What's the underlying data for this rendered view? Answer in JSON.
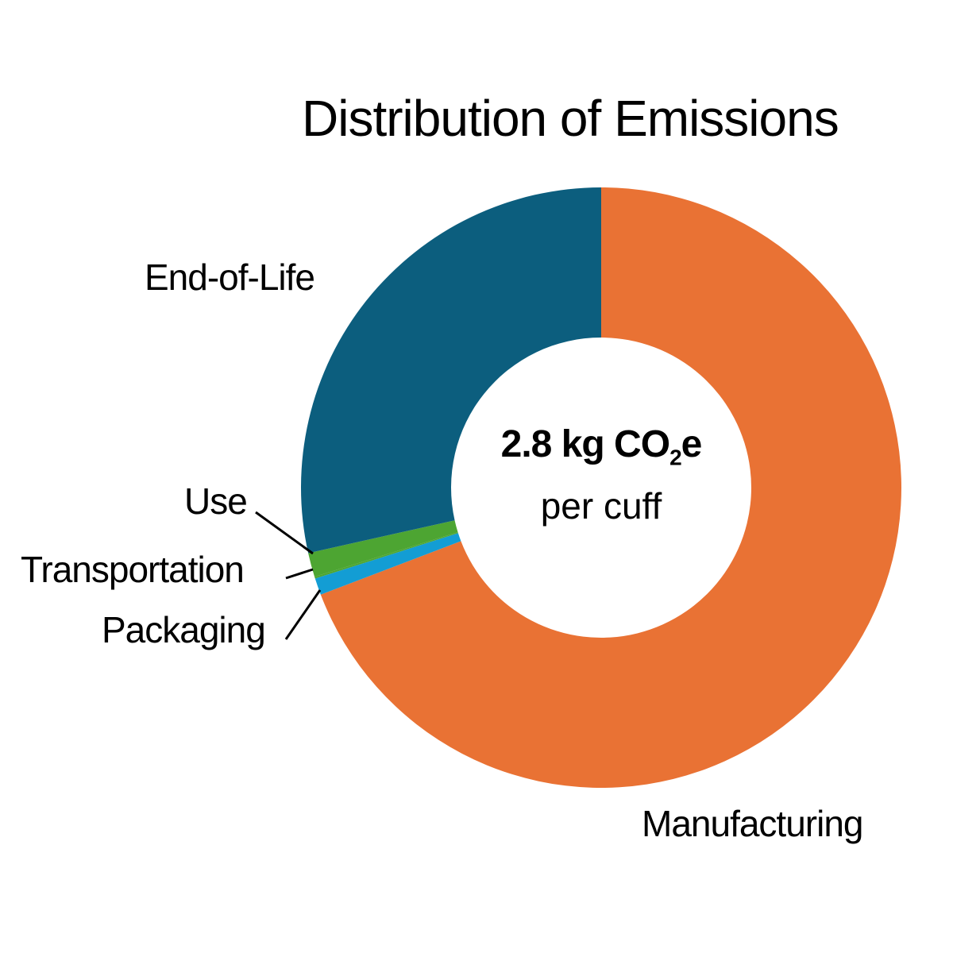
{
  "chart_data": {
    "type": "pie",
    "subtype": "donut",
    "title": "Distribution of Emissions",
    "center_label": {
      "value": "2.8 kg CO",
      "subscript": "2",
      "suffix": "e",
      "sub_label": "per cuff"
    },
    "slices": [
      {
        "label": "Manufacturing",
        "value": 69.2,
        "color": "#e97234"
      },
      {
        "label": "Packaging",
        "value": 0.9,
        "color": "#139dd4"
      },
      {
        "label": "Transportation",
        "value": 0.1,
        "color": "#4da532"
      },
      {
        "label": "Use",
        "value": 1.3,
        "color": "#4da532"
      },
      {
        "label": "End-of-Life",
        "value": 28.5,
        "color": "#0c5e7e"
      }
    ],
    "unit": "percent (estimated)"
  }
}
